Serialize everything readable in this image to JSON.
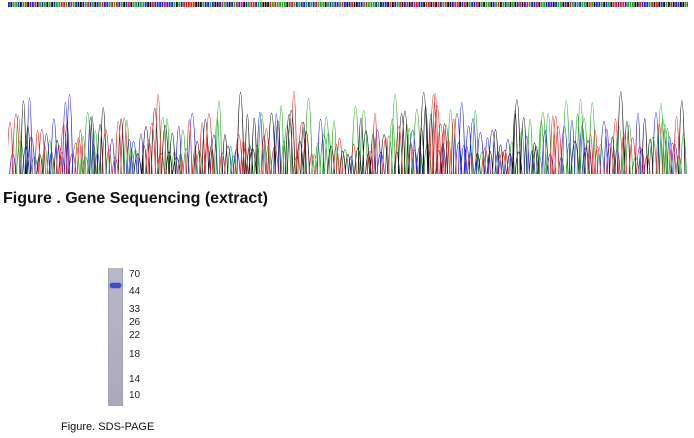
{
  "figure1": {
    "caption": "Figure . Gene Sequencing (extract)",
    "trace_colors": {
      "A": "#22aa22",
      "C": "#2222dd",
      "G": "#111111",
      "T": "#dd2222"
    }
  },
  "figure2": {
    "caption": "Figure. SDS-PAGE",
    "markers": [
      "70",
      "44",
      "33",
      "26",
      "22",
      "18",
      "14",
      "10"
    ],
    "band_color": "#3a4fc8"
  }
}
